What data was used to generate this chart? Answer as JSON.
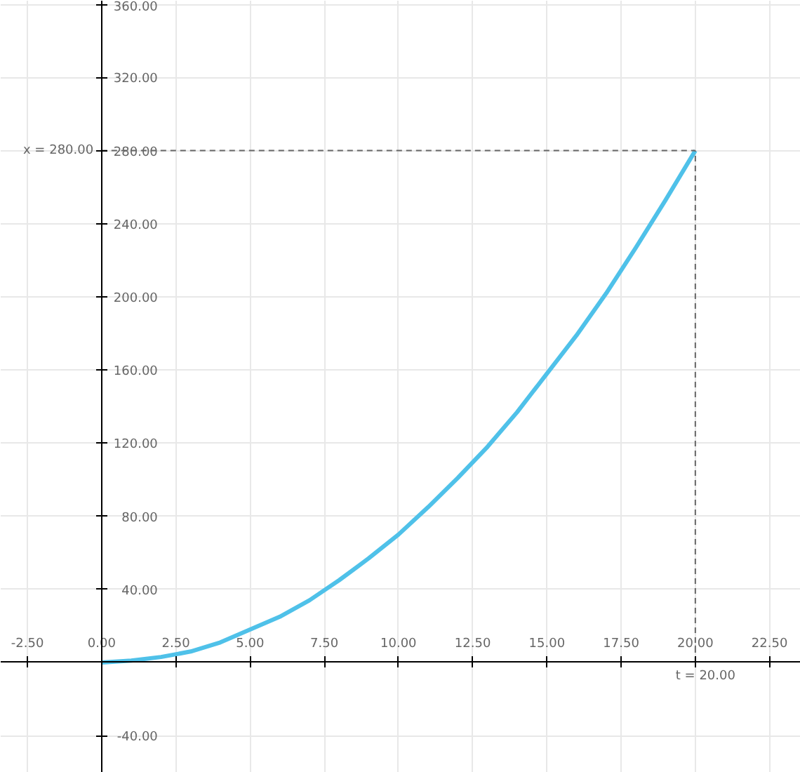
{
  "chart_data": {
    "type": "line",
    "x": [
      0,
      1,
      2,
      3,
      4,
      5,
      6,
      7,
      8,
      9,
      10,
      11,
      12,
      13,
      14,
      15,
      16,
      17,
      18,
      19,
      20
    ],
    "series": [
      {
        "color": "#4fc1e9",
        "values": [
          0,
          1,
          3,
          6,
          11,
          18,
          25,
          34,
          45,
          57,
          70,
          85,
          101,
          118,
          137,
          158,
          179,
          202,
          227,
          253,
          280
        ]
      }
    ],
    "xlim": [
      -3.4,
      23.55
    ],
    "ylim": [
      -60.3,
      362
    ],
    "xticks": [
      {
        "value": -2.5,
        "label": "-2.50"
      },
      {
        "value": 0,
        "label": "0.00"
      },
      {
        "value": 2.5,
        "label": "2.50"
      },
      {
        "value": 5,
        "label": "5.00"
      },
      {
        "value": 7.5,
        "label": "7.50"
      },
      {
        "value": 10,
        "label": "10.00"
      },
      {
        "value": 12.5,
        "label": "12.50"
      },
      {
        "value": 15,
        "label": "15.00"
      },
      {
        "value": 17.5,
        "label": "17.50"
      },
      {
        "value": 20,
        "label": "20.00"
      },
      {
        "value": 22.5,
        "label": "22.50"
      }
    ],
    "yticks": [
      {
        "value": -40,
        "label": "-40.00"
      },
      {
        "value": 40,
        "label": "40.00"
      },
      {
        "value": 80,
        "label": "80.00"
      },
      {
        "value": 120,
        "label": "120.00"
      },
      {
        "value": 160,
        "label": "160.00"
      },
      {
        "value": 200,
        "label": "200.00"
      },
      {
        "value": 240,
        "label": "240.00"
      },
      {
        "value": 280,
        "label": "280.00"
      },
      {
        "value": 320,
        "label": "320.00"
      },
      {
        "value": 360,
        "label": "360.00"
      }
    ],
    "grid": true,
    "ref_lines": [
      {
        "axis": "y",
        "value": 280,
        "label": "x = 280.00",
        "color": "#666666",
        "line_style": "dashed"
      },
      {
        "axis": "x",
        "value": 20,
        "label": "t = 20.00",
        "color": "#666666",
        "line_style": "dashed"
      }
    ]
  }
}
